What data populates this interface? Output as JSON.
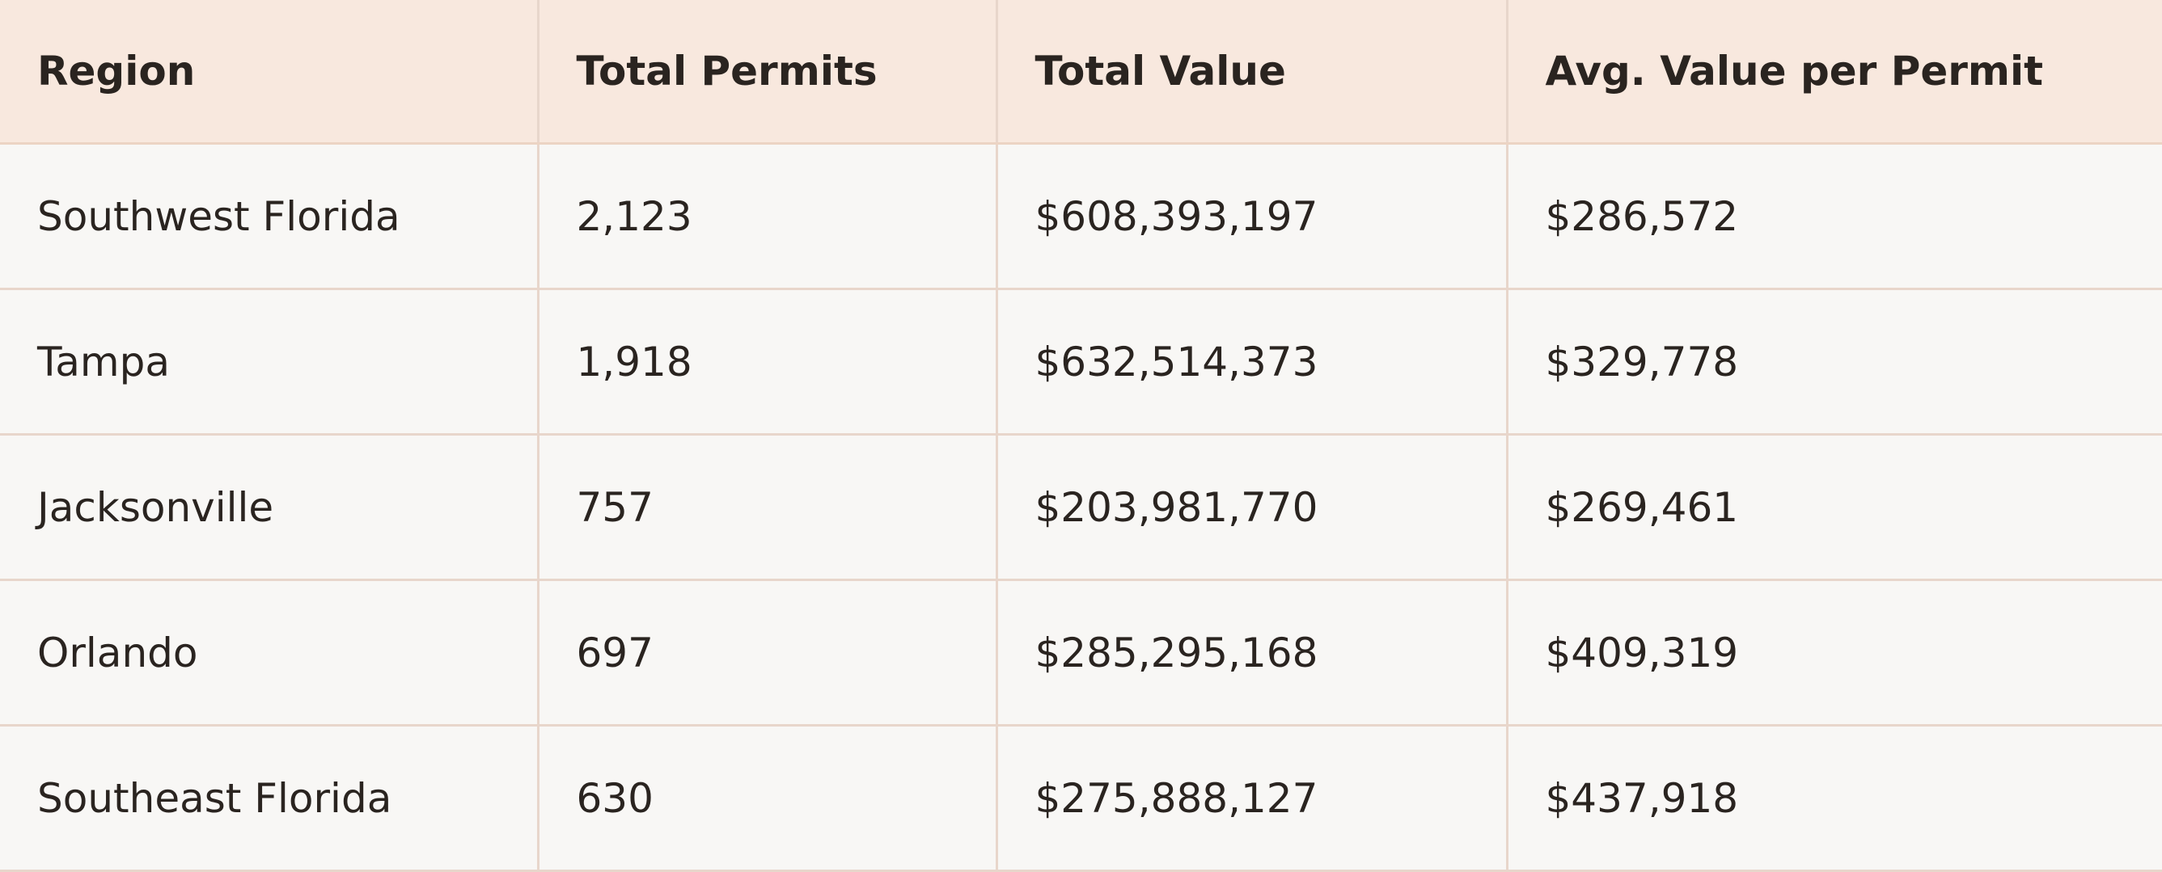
{
  "table": {
    "header": [
      "Region",
      "Total Permits",
      "Total Value",
      "Avg. Value per Permit"
    ],
    "rows": [
      [
        "Southwest Florida",
        "2,123",
        "$608,393,197",
        "$286,572"
      ],
      [
        "Tampa",
        "1,918",
        "$632,514,373",
        "$329,778"
      ],
      [
        "Jacksonville",
        "757",
        "$203,981,770",
        "$269,461"
      ],
      [
        "Orlando",
        "697",
        "$285,295,168",
        "$409,319"
      ],
      [
        "Southeast Florida",
        "630",
        "$275,888,127",
        "$437,918"
      ]
    ]
  }
}
